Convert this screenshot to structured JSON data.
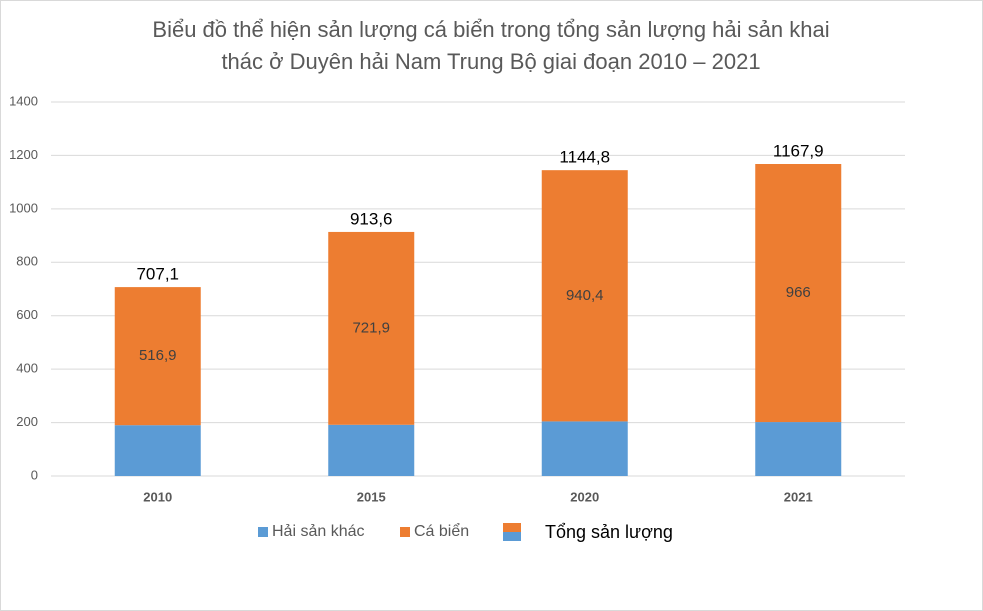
{
  "chart_data": {
    "type": "stacked-bar",
    "title": [
      "Biểu đồ thể hiện sản lượng cá biển trong tổng sản lượng hải sản khai",
      "thác ở Duyên hải Nam Trung Bộ giai đoạn 2010 – 2021"
    ],
    "categories": [
      "2010",
      "2015",
      "2020",
      "2021"
    ],
    "series": [
      {
        "name": "Hải sản khác",
        "color": "#5b9bd5",
        "values": [
          190.2,
          191.7,
          204.4,
          201.9
        ]
      },
      {
        "name": "Cá biển",
        "color": "#ed7d31",
        "values": [
          516.9,
          721.9,
          940.4,
          966
        ],
        "value_labels": [
          "516,9",
          "721,9",
          "940,4",
          "966"
        ]
      }
    ],
    "totals": {
      "name": "Tổng sản lượng",
      "values": [
        707.1,
        913.6,
        1144.8,
        1167.9
      ],
      "value_labels": [
        "707,1",
        "913,6",
        "1144,8",
        "1167,9"
      ]
    },
    "ylim": [
      0,
      1400
    ],
    "yticks": [
      0,
      200,
      400,
      600,
      800,
      1000,
      1200,
      1400
    ],
    "grid": true
  }
}
